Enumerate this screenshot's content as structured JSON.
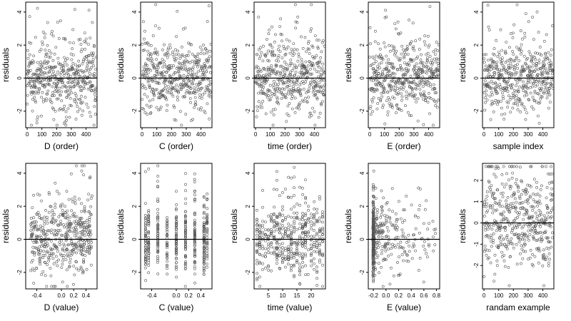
{
  "chart_data": [
    {
      "type": "scatter",
      "xlabel": "D (order)",
      "ylabel": "residuals",
      "xlim": [
        -10,
        475
      ],
      "ylim": [
        -3,
        4.6
      ],
      "xticks": [
        0,
        100,
        200,
        300,
        400
      ],
      "xticklabels": [
        "0",
        "100",
        "200",
        "300",
        "400"
      ],
      "yticks": [
        -2,
        0,
        2,
        4
      ],
      "yticklabels": [
        "-2",
        "0",
        "2",
        "4"
      ],
      "reference_line_y": 0,
      "n_points": 470,
      "dist": "order",
      "seed": 101
    },
    {
      "type": "scatter",
      "xlabel": "C (order)",
      "ylabel": "residuals",
      "xlim": [
        -10,
        475
      ],
      "ylim": [
        -3,
        4.6
      ],
      "xticks": [
        0,
        100,
        200,
        300,
        400
      ],
      "xticklabels": [
        "0",
        "100",
        "200",
        "300",
        "400"
      ],
      "yticks": [
        -2,
        0,
        2,
        4
      ],
      "yticklabels": [
        "-2",
        "0",
        "2",
        "4"
      ],
      "reference_line_y": 0,
      "n_points": 470,
      "dist": "order",
      "seed": 202
    },
    {
      "type": "scatter",
      "xlabel": "time (order)",
      "ylabel": "residuals",
      "xlim": [
        -10,
        475
      ],
      "ylim": [
        -3,
        4.6
      ],
      "xticks": [
        0,
        100,
        200,
        300,
        400
      ],
      "xticklabels": [
        "0",
        "100",
        "200",
        "300",
        "400"
      ],
      "yticks": [
        -2,
        0,
        2,
        4
      ],
      "yticklabels": [
        "-2",
        "0",
        "2",
        "4"
      ],
      "reference_line_y": 0,
      "n_points": 470,
      "dist": "order",
      "seed": 303
    },
    {
      "type": "scatter",
      "xlabel": "E (order)",
      "ylabel": "residuals",
      "xlim": [
        -10,
        475
      ],
      "ylim": [
        -3,
        4.6
      ],
      "xticks": [
        0,
        100,
        200,
        300,
        400
      ],
      "xticklabels": [
        "0",
        "100",
        "200",
        "300",
        "400"
      ],
      "yticks": [
        -2,
        0,
        2,
        4
      ],
      "yticklabels": [
        "-2",
        "0",
        "2",
        "4"
      ],
      "reference_line_y": 0,
      "n_points": 470,
      "dist": "order",
      "seed": 404
    },
    {
      "type": "scatter",
      "xlabel": "sample index",
      "ylabel": "residuals",
      "xlim": [
        -10,
        475
      ],
      "ylim": [
        -3,
        4.6
      ],
      "xticks": [
        0,
        100,
        200,
        300,
        400
      ],
      "xticklabels": [
        "0",
        "100",
        "200",
        "300",
        "400"
      ],
      "yticks": [
        -2,
        0,
        2,
        4
      ],
      "yticklabels": [
        "-2",
        "0",
        "2",
        "4"
      ],
      "reference_line_y": 0,
      "n_points": 470,
      "dist": "order",
      "seed": 505
    },
    {
      "type": "scatter",
      "xlabel": "D (value)",
      "ylabel": "residuals",
      "xlim": [
        -0.58,
        0.58
      ],
      "ylim": [
        -3,
        4.6
      ],
      "xticks": [
        -0.4,
        0.0,
        0.2,
        0.4
      ],
      "xticklabels": [
        "-0.4",
        "0.0",
        "0.2",
        "0.4"
      ],
      "yticks": [
        -2,
        0,
        2,
        4
      ],
      "yticklabels": [
        "-2",
        "0",
        "2",
        "4"
      ],
      "reference_line_y": 0,
      "n_points": 470,
      "dist": "uniform",
      "seed": 606
    },
    {
      "type": "scatter",
      "xlabel": "C (value)",
      "ylabel": "residuals",
      "xlim": [
        -0.58,
        0.58
      ],
      "ylim": [
        -3,
        4.6
      ],
      "xticks": [
        -0.4,
        0.0,
        0.2,
        0.4
      ],
      "xticklabels": [
        "-0.4",
        "0.0",
        "0.2",
        "0.4"
      ],
      "yticks": [
        -2,
        0,
        2,
        4
      ],
      "yticklabels": [
        "-2",
        "0",
        "2",
        "4"
      ],
      "reference_line_y": 0,
      "n_points": 470,
      "dist": "columns",
      "columns": [
        -0.5,
        -0.45,
        -0.3,
        -0.15,
        0.0,
        0.15,
        0.3,
        0.45,
        0.5
      ],
      "seed": 707
    },
    {
      "type": "scatter",
      "xlabel": "time (value)",
      "ylabel": "residuals",
      "xlim": [
        0,
        25
      ],
      "ylim": [
        -3,
        4.6
      ],
      "xticks": [
        5,
        10,
        15,
        20
      ],
      "xticklabels": [
        "5",
        "10",
        "15",
        "20"
      ],
      "yticks": [
        -2,
        0,
        2,
        4
      ],
      "yticklabels": [
        "-2",
        "0",
        "2",
        "4"
      ],
      "reference_line_y": 0,
      "n_points": 470,
      "dist": "columns",
      "columns": [
        1,
        2,
        3,
        4,
        5,
        6,
        7,
        8,
        9,
        10,
        11,
        12,
        13,
        14,
        15,
        16,
        17,
        18,
        19,
        20,
        21,
        22,
        23,
        24
      ],
      "seed": 808
    },
    {
      "type": "scatter",
      "xlabel": "E (value)",
      "ylabel": "residuals",
      "xlim": [
        -0.28,
        0.85
      ],
      "ylim": [
        -3,
        4.6
      ],
      "xticks": [
        -0.2,
        0.0,
        0.2,
        0.4,
        0.6,
        0.8
      ],
      "xticklabels": [
        "-0.2",
        "0.0",
        "0.2",
        "0.4",
        "0.6",
        "0.8"
      ],
      "yticks": [
        -2,
        0,
        2,
        4
      ],
      "yticklabels": [
        "-2",
        "0",
        "2",
        "4"
      ],
      "reference_line_y": 0,
      "n_points": 470,
      "dist": "skewed",
      "seed": 909
    },
    {
      "type": "scatter",
      "xlabel": "randam example",
      "ylabel": "residuals",
      "xlim": [
        -10,
        475
      ],
      "ylim": [
        -3.1,
        2.8
      ],
      "xticks": [
        0,
        100,
        200,
        300,
        400
      ],
      "xticklabels": [
        "0",
        "100",
        "200",
        "300",
        "400"
      ],
      "yticks": [
        -2,
        -1,
        0,
        1,
        2
      ],
      "yticklabels": [
        "-2",
        "-1",
        "0",
        "1",
        "2"
      ],
      "reference_line_y": 0,
      "n_points": 470,
      "dist": "order",
      "seed": 1010
    }
  ]
}
